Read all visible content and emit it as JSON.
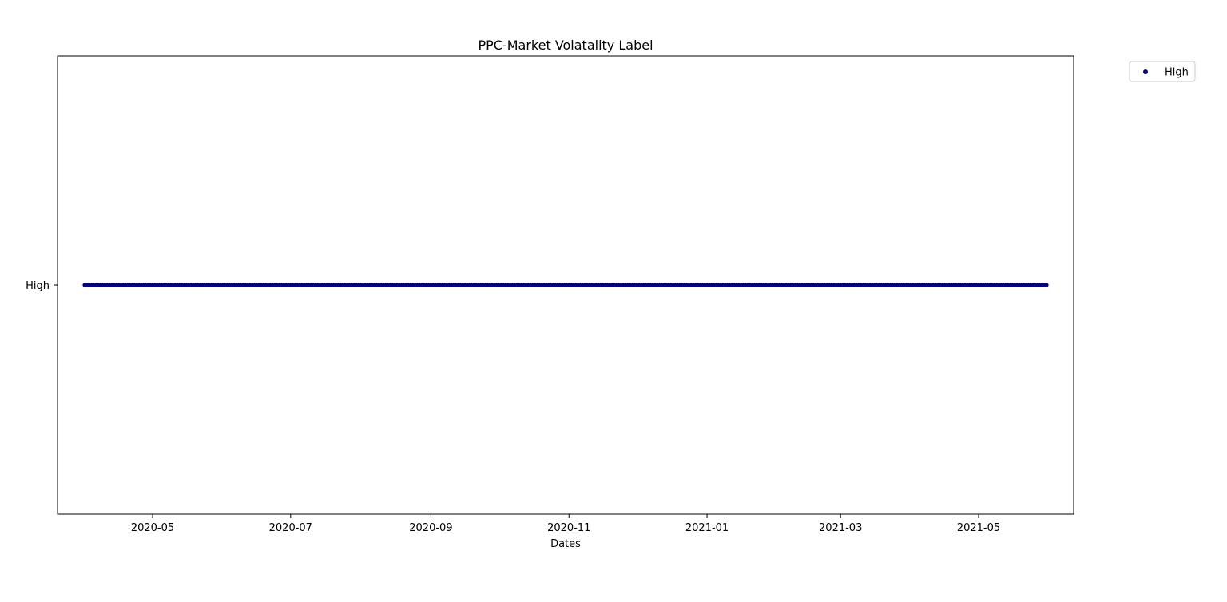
{
  "chart_data": {
    "type": "scatter",
    "title": "PPC-Market Volatality Label",
    "xlabel": "Dates",
    "ylabel": "",
    "x_axis_type": "date",
    "xlim": [
      "2020-03-20",
      "2021-06-12"
    ],
    "x_ticks": [
      "2020-05",
      "2020-07",
      "2020-09",
      "2020-11",
      "2021-01",
      "2021-03",
      "2021-05"
    ],
    "y_categories": [
      "High"
    ],
    "grid": false,
    "legend_placement": "outside-top-right",
    "series": [
      {
        "name": "High",
        "color": "#00008b",
        "x_range": [
          "2020-04-01",
          "2021-05-31"
        ],
        "frequency": "daily",
        "y": "High"
      }
    ]
  }
}
